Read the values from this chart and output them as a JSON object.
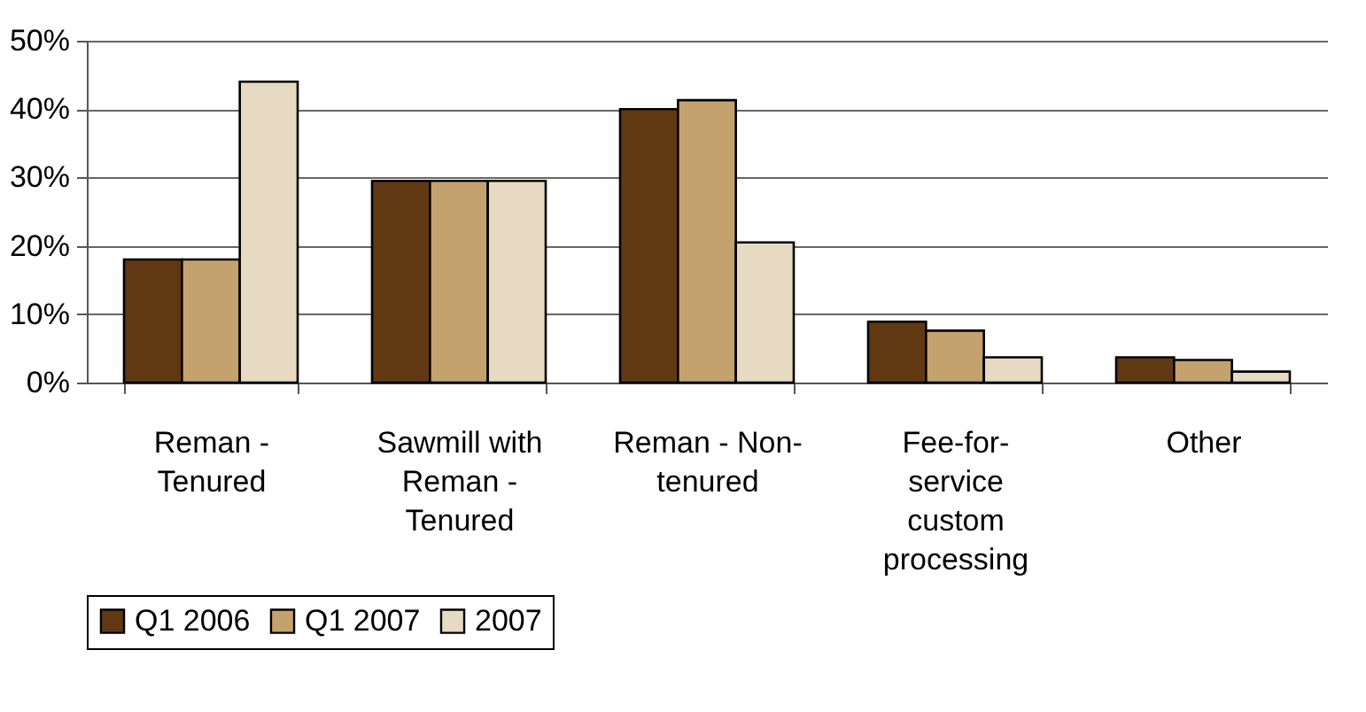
{
  "chart_data": {
    "type": "bar",
    "categories": [
      "Reman - Tenured",
      "Sawmill with Reman - Tenured",
      "Reman - Non-tenured",
      "Fee-for-service custom processing",
      "Other"
    ],
    "series": [
      {
        "name": "Q1 2006",
        "color": "#603913",
        "values": [
          18,
          29.5,
          40,
          8.9,
          3.7
        ]
      },
      {
        "name": "Q1 2007",
        "color": "#c4a26d",
        "values": [
          18,
          29.5,
          41.3,
          7.6,
          3.3
        ]
      },
      {
        "name": "2007",
        "color": "#e6dac3",
        "values": [
          44,
          29.5,
          20.5,
          3.7,
          1.6
        ]
      }
    ],
    "ylim": [
      0,
      50
    ],
    "yticks": [
      {
        "value": 0,
        "label": "0%"
      },
      {
        "value": 10,
        "label": "10%"
      },
      {
        "value": 20,
        "label": "20%"
      },
      {
        "value": 30,
        "label": "30%"
      },
      {
        "value": 40,
        "label": "40%"
      },
      {
        "value": 50,
        "label": "50%"
      }
    ],
    "grid": "y",
    "legend": "bottom"
  }
}
